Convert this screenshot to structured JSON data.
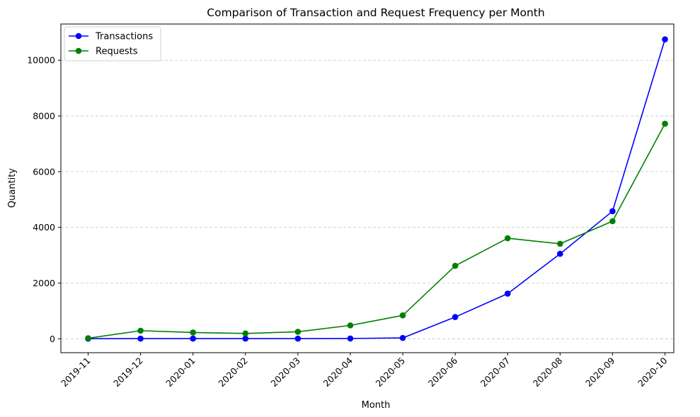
{
  "chart_data": {
    "type": "line",
    "title": "Comparison of Transaction and Request Frequency per Month",
    "xlabel": "Month",
    "ylabel": "Quantity",
    "categories": [
      "2019-11",
      "2019-12",
      "2020-01",
      "2020-02",
      "2020-03",
      "2020-04",
      "2020-05",
      "2020-06",
      "2020-07",
      "2020-08",
      "2020-09",
      "2020-10"
    ],
    "ylim": [
      -500,
      11300
    ],
    "yticks": [
      0,
      2000,
      4000,
      6000,
      8000,
      10000
    ],
    "grid": "y-dashed",
    "legend_position": "top-left",
    "series": [
      {
        "name": "Transactions",
        "color": "#0000ff",
        "marker": "circle",
        "values": [
          2,
          5,
          5,
          5,
          5,
          10,
          30,
          780,
          1620,
          3050,
          4580,
          10750
        ]
      },
      {
        "name": "Requests",
        "color": "#008000",
        "marker": "circle",
        "values": [
          20,
          290,
          225,
          190,
          250,
          480,
          840,
          2620,
          3610,
          3410,
          4220,
          7720
        ]
      }
    ]
  }
}
